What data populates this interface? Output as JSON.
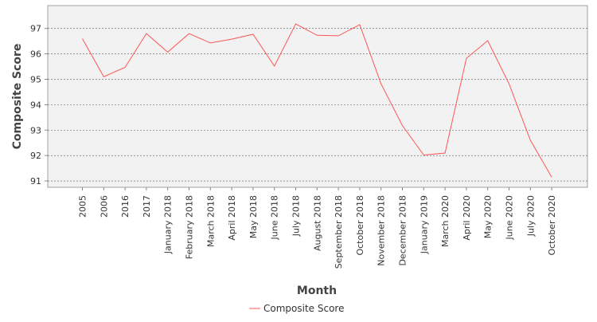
{
  "chart_data": {
    "type": "line",
    "title": "",
    "xlabel": "Month",
    "ylabel": "Composite Score",
    "ylim": [
      90.75,
      97.9
    ],
    "yticks": [
      91,
      92,
      93,
      94,
      95,
      96,
      97
    ],
    "grid": true,
    "legend_position": "bottom",
    "categories": [
      "2005",
      "2006",
      "2016",
      "2017",
      "January 2018",
      "February 2018",
      "March 2018",
      "April 2018",
      "May 2018",
      "June 2018",
      "July 2018",
      "August 2018",
      "September 2018",
      "October 2018",
      "November 2018",
      "December 2018",
      "January 2019",
      "March 2020",
      "April 2020",
      "May 2020",
      "June 2020",
      "July 2020",
      "October 2020"
    ],
    "series": [
      {
        "name": "Composite Score",
        "color": "#ff5555",
        "values": [
          96.6,
          95.1,
          95.47,
          96.8,
          96.07,
          96.8,
          96.43,
          96.58,
          96.77,
          95.52,
          97.18,
          96.73,
          96.71,
          97.15,
          94.82,
          93.18,
          92.02,
          92.1,
          95.82,
          96.52,
          94.82,
          92.6,
          91.15
        ]
      }
    ]
  }
}
